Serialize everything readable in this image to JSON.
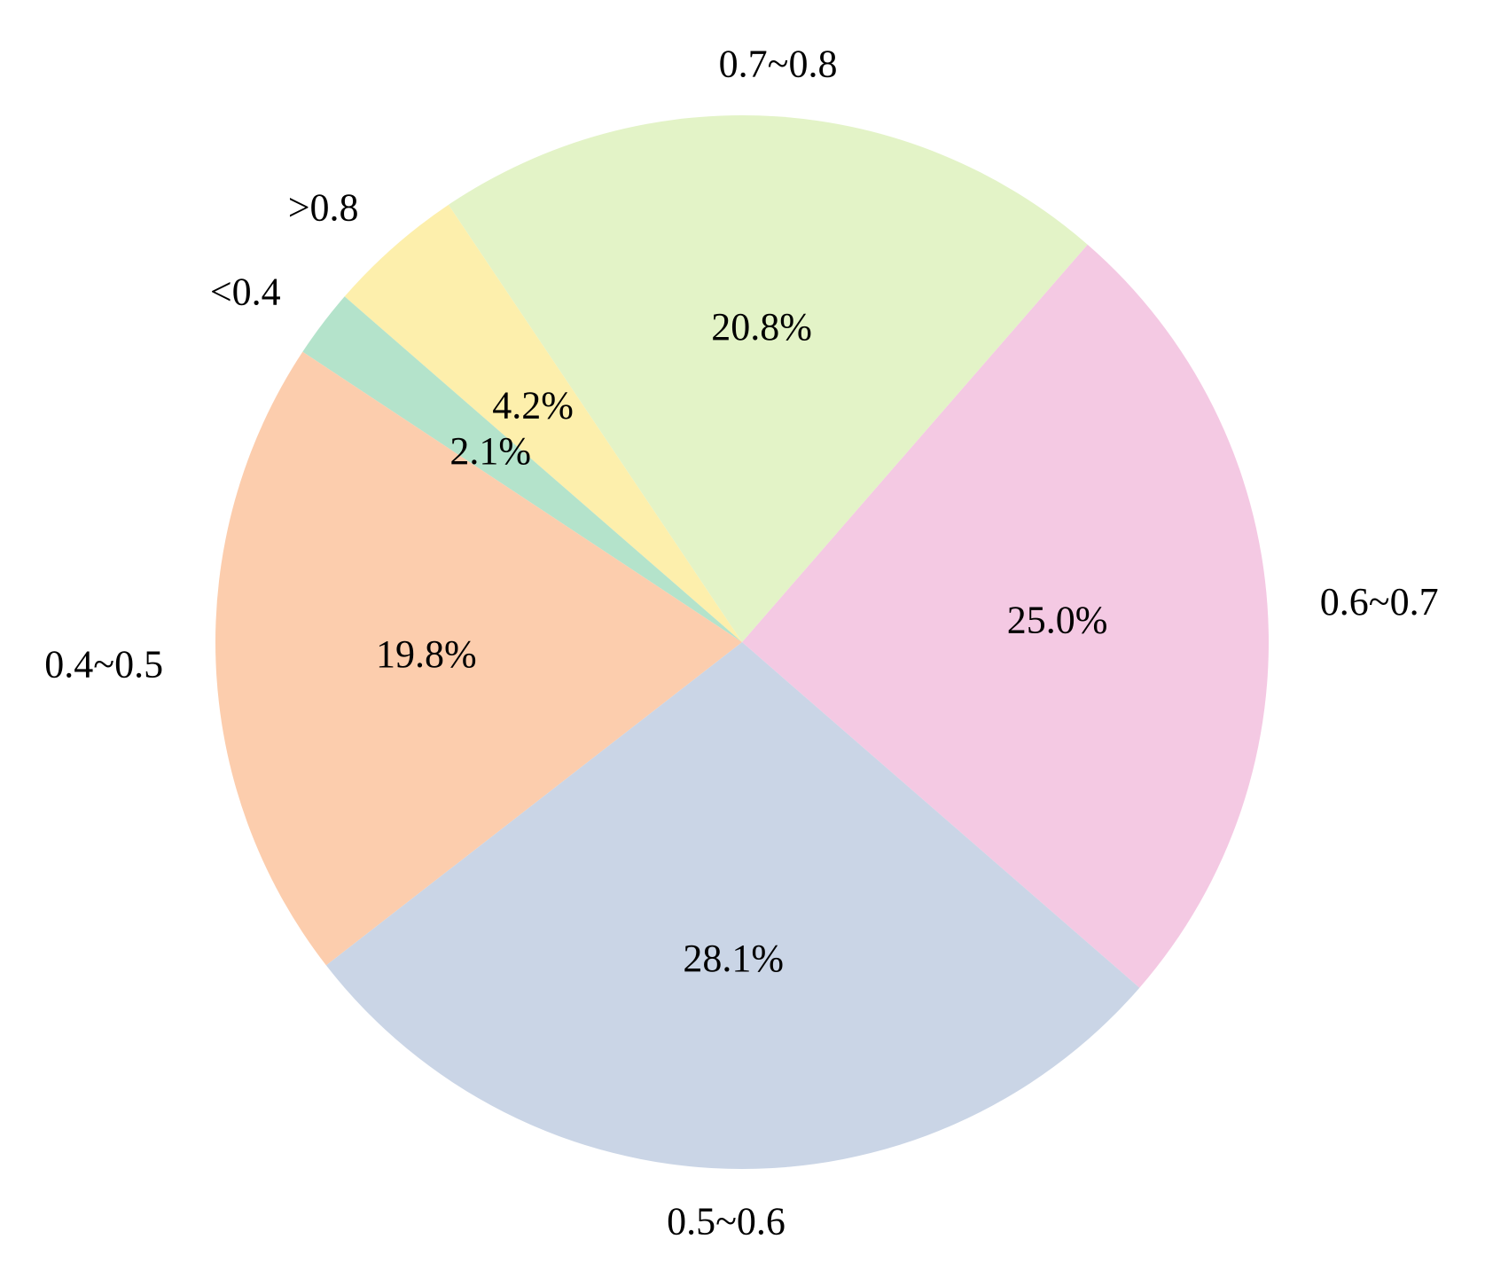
{
  "chart_data": {
    "type": "pie",
    "title": "",
    "slices": [
      {
        "label": "0.6~0.7",
        "value": 25.0,
        "pct_label": "25.0%",
        "color": "#f4c9e3"
      },
      {
        "label": "0.7~0.8",
        "value": 20.8,
        "pct_label": "20.8%",
        "color": "#e3f3c7"
      },
      {
        "label": ">0.8",
        "value": 4.2,
        "pct_label": "4.2%",
        "color": "#fdefac"
      },
      {
        "label": "<0.4",
        "value": 2.1,
        "pct_label": "2.1%",
        "color": "#b4e3cb"
      },
      {
        "label": "0.4~0.5",
        "value": 19.8,
        "pct_label": "19.8%",
        "color": "#fccdad"
      },
      {
        "label": "0.5~0.6",
        "value": 28.1,
        "pct_label": "28.1%",
        "color": "#cad5e6"
      }
    ],
    "start_angle_deg": -41,
    "direction": "counterclockwise",
    "legend": "none"
  }
}
